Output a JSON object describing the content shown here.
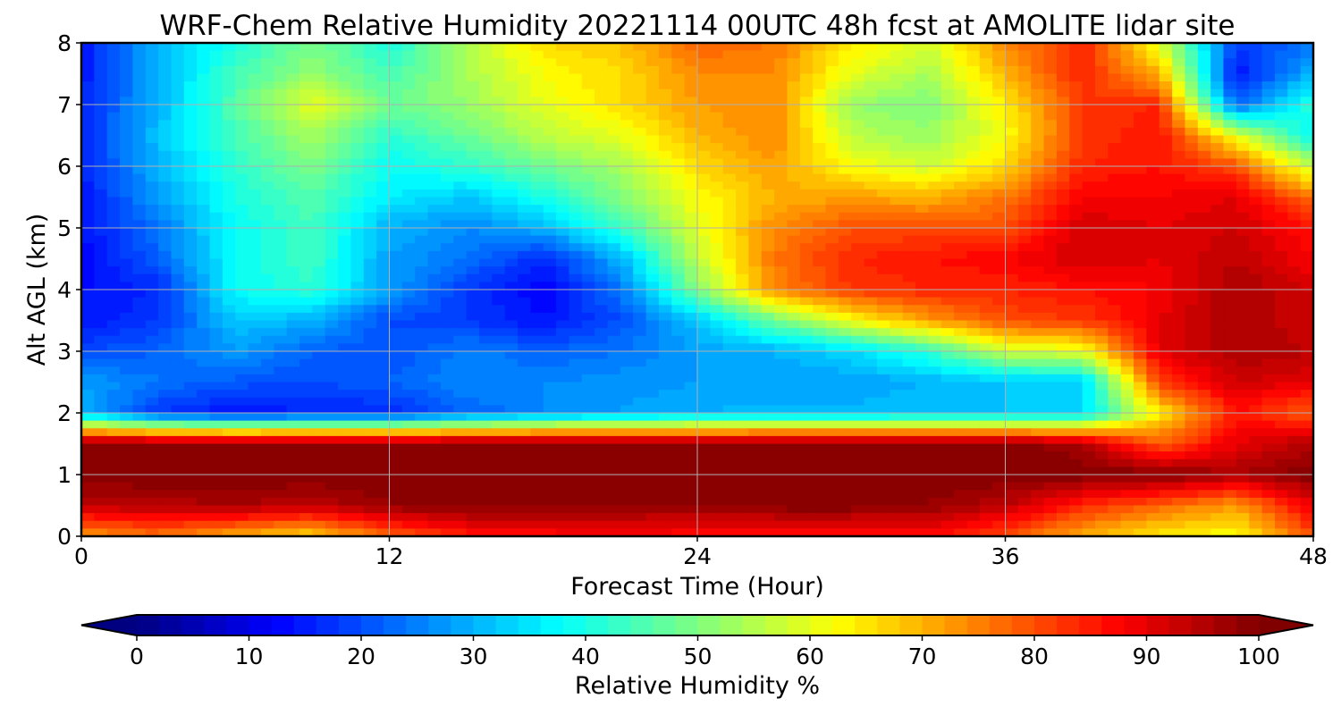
{
  "chart_data": {
    "type": "heatmap",
    "title": "WRF-Chem Relative Humidity 20221114 00UTC 48h fcst at AMOLITE lidar site",
    "xlabel": "Forecast Time (Hour)",
    "ylabel": "Alt AGL (km)",
    "xlim": [
      0,
      48
    ],
    "ylim": [
      0,
      8
    ],
    "x_ticks": [
      0,
      12,
      24,
      36,
      48
    ],
    "y_ticks": [
      0,
      1,
      2,
      3,
      4,
      5,
      6,
      7,
      8
    ],
    "grid": true,
    "x_hours": [
      0,
      3,
      6,
      9,
      12,
      15,
      18,
      21,
      24,
      27,
      30,
      33,
      36,
      39,
      42,
      45,
      48
    ],
    "altitudes_km": [
      0,
      0.5,
      1,
      1.5,
      2,
      2.5,
      3,
      3.5,
      4,
      4.5,
      5,
      5.5,
      6,
      6.5,
      7,
      7.5,
      8
    ],
    "rh_percent": [
      [
        72,
        76,
        70,
        66,
        78,
        84,
        86,
        88,
        86,
        84,
        84,
        86,
        80,
        70,
        64,
        62,
        80
      ],
      [
        94,
        95,
        96,
        94,
        98,
        100,
        99,
        98,
        98,
        100,
        100,
        98,
        94,
        84,
        78,
        72,
        90
      ],
      [
        100,
        100,
        100,
        100,
        100,
        100,
        100,
        100,
        100,
        100,
        100,
        100,
        100,
        100,
        100,
        96,
        100
      ],
      [
        100,
        100,
        100,
        100,
        100,
        100,
        100,
        100,
        100,
        100,
        100,
        100,
        100,
        96,
        78,
        90,
        95
      ],
      [
        30,
        18,
        14,
        16,
        16,
        22,
        26,
        28,
        30,
        31,
        31,
        32,
        32,
        34,
        64,
        86,
        78
      ],
      [
        28,
        24,
        21,
        20,
        22,
        26,
        26,
        27,
        28,
        28,
        28,
        30,
        32,
        32,
        82,
        92,
        90
      ],
      [
        20,
        22,
        28,
        22,
        20,
        25,
        22,
        24,
        28,
        30,
        34,
        42,
        58,
        60,
        90,
        96,
        94
      ],
      [
        14,
        18,
        32,
        30,
        20,
        18,
        14,
        20,
        32,
        48,
        62,
        72,
        80,
        82,
        90,
        96,
        92
      ],
      [
        14,
        16,
        38,
        42,
        28,
        18,
        12,
        24,
        50,
        74,
        82,
        84,
        84,
        86,
        88,
        96,
        92
      ],
      [
        12,
        22,
        38,
        44,
        28,
        24,
        16,
        30,
        56,
        76,
        84,
        86,
        88,
        92,
        90,
        94,
        88
      ],
      [
        14,
        24,
        38,
        44,
        30,
        26,
        30,
        42,
        60,
        74,
        80,
        80,
        80,
        92,
        90,
        92,
        86
      ],
      [
        14,
        28,
        40,
        46,
        36,
        32,
        40,
        50,
        62,
        70,
        72,
        70,
        76,
        88,
        88,
        90,
        76
      ],
      [
        16,
        30,
        42,
        50,
        38,
        42,
        48,
        54,
        66,
        72,
        62,
        58,
        66,
        84,
        86,
        80,
        56
      ],
      [
        16,
        32,
        44,
        54,
        42,
        48,
        56,
        60,
        70,
        74,
        56,
        52,
        62,
        82,
        86,
        60,
        36
      ],
      [
        16,
        30,
        46,
        60,
        48,
        52,
        60,
        66,
        72,
        74,
        52,
        50,
        64,
        82,
        84,
        22,
        42
      ],
      [
        14,
        30,
        44,
        52,
        44,
        54,
        62,
        66,
        74,
        74,
        60,
        54,
        70,
        84,
        70,
        14,
        30
      ],
      [
        14,
        30,
        40,
        50,
        40,
        54,
        66,
        68,
        78,
        76,
        64,
        58,
        74,
        84,
        60,
        18,
        24
      ]
    ],
    "colorbar": {
      "label": "Relative Humidity %",
      "min": 0,
      "max": 100,
      "ticks": [
        0,
        10,
        20,
        30,
        40,
        50,
        60,
        70,
        80,
        90,
        100
      ],
      "levels": 50,
      "extend": "both",
      "colormap": "jet",
      "orientation": "horizontal"
    }
  }
}
